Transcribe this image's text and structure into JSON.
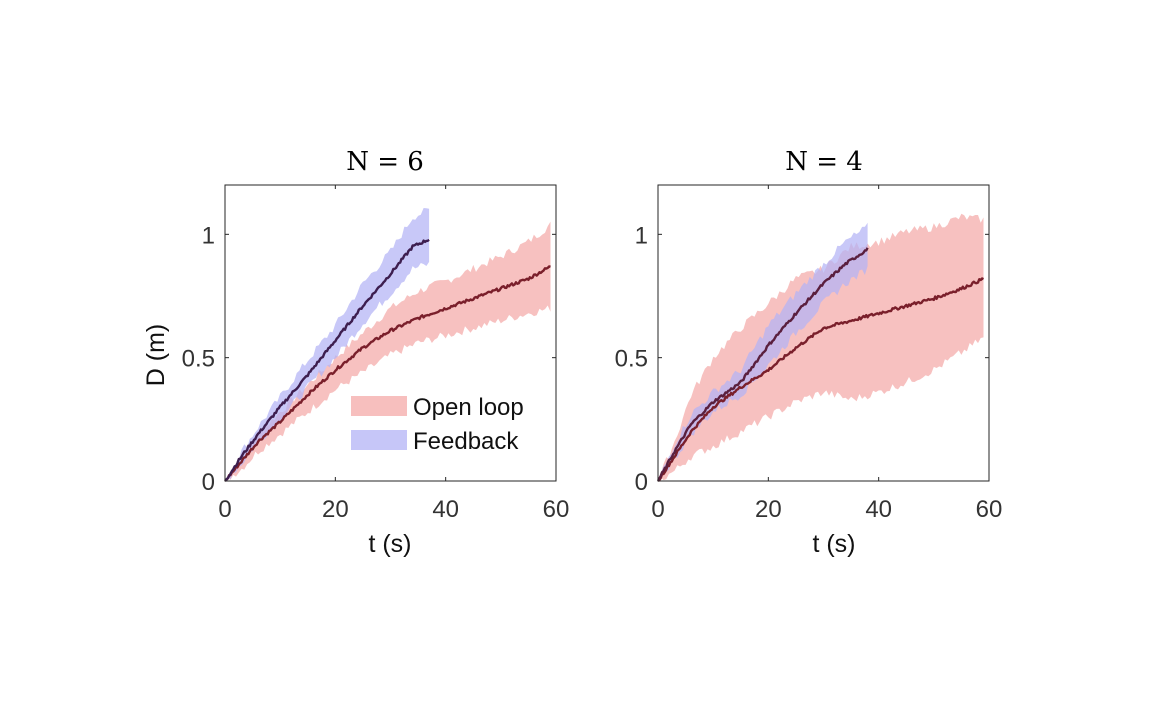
{
  "chart_data": [
    {
      "type": "line",
      "title": "N = 6",
      "xlabel": "t (s)",
      "ylabel": "D (m)",
      "xlim": [
        0,
        60
      ],
      "ylim": [
        0,
        1.2
      ],
      "xticks": [
        0,
        20,
        40,
        60
      ],
      "yticks": [
        0,
        0.5,
        1
      ],
      "xtick_labels": [
        "0",
        "20",
        "40",
        "60"
      ],
      "ytick_labels": [
        "0",
        "0.5",
        "1"
      ],
      "grid": false,
      "legend": {
        "placement": "bottom-right",
        "entries": [
          {
            "label": "Open loop",
            "color": "#f4a9a8"
          },
          {
            "label": "Feedback",
            "color": "#b3b3f5"
          }
        ]
      },
      "series": [
        {
          "name": "Open loop",
          "line_color": "#7a1f2b",
          "band_color": "#f4a9a8",
          "x": [
            0,
            3,
            6,
            10,
            15,
            20,
            25,
            30,
            35,
            40,
            45,
            50,
            55,
            59
          ],
          "mean": [
            0,
            0.08,
            0.16,
            0.24,
            0.35,
            0.45,
            0.54,
            0.61,
            0.66,
            0.7,
            0.74,
            0.78,
            0.82,
            0.87
          ],
          "upper": [
            0,
            0.1,
            0.19,
            0.28,
            0.39,
            0.5,
            0.6,
            0.7,
            0.77,
            0.81,
            0.86,
            0.91,
            0.97,
            1.04
          ],
          "lower": [
            0,
            0.05,
            0.12,
            0.19,
            0.28,
            0.37,
            0.44,
            0.51,
            0.56,
            0.59,
            0.62,
            0.65,
            0.68,
            0.7
          ]
        },
        {
          "name": "Feedback",
          "line_color": "#3d1e4f",
          "band_color": "#b3b3f5",
          "x": [
            0,
            3,
            6,
            10,
            15,
            20,
            25,
            30,
            34,
            37
          ],
          "mean": [
            0,
            0.1,
            0.19,
            0.3,
            0.43,
            0.57,
            0.71,
            0.84,
            0.95,
            0.98
          ],
          "upper": [
            0,
            0.12,
            0.22,
            0.34,
            0.49,
            0.63,
            0.8,
            0.93,
            1.07,
            1.1
          ],
          "lower": [
            0,
            0.07,
            0.16,
            0.25,
            0.38,
            0.5,
            0.64,
            0.76,
            0.86,
            0.88
          ]
        }
      ]
    },
    {
      "type": "line",
      "title": "N = 4",
      "xlabel": "t (s)",
      "ylabel": "",
      "xlim": [
        0,
        60
      ],
      "ylim": [
        0,
        1.2
      ],
      "xticks": [
        0,
        20,
        40,
        60
      ],
      "yticks": [
        0,
        0.5,
        1
      ],
      "xtick_labels": [
        "0",
        "20",
        "40",
        "60"
      ],
      "ytick_labels": [
        "0",
        "0.5",
        "1"
      ],
      "grid": false,
      "series": [
        {
          "name": "Open loop",
          "line_color": "#7a1f2b",
          "band_color": "#f4a9a8",
          "x": [
            0,
            3,
            6,
            10,
            15,
            20,
            25,
            30,
            35,
            40,
            45,
            50,
            55,
            59
          ],
          "mean": [
            0,
            0.1,
            0.2,
            0.3,
            0.38,
            0.45,
            0.54,
            0.62,
            0.65,
            0.68,
            0.71,
            0.74,
            0.78,
            0.82
          ],
          "upper": [
            0,
            0.16,
            0.35,
            0.5,
            0.62,
            0.72,
            0.82,
            0.86,
            0.95,
            0.97,
            1.01,
            1.03,
            1.07,
            1.06
          ],
          "lower": [
            0,
            0.04,
            0.1,
            0.14,
            0.2,
            0.26,
            0.32,
            0.36,
            0.33,
            0.36,
            0.4,
            0.45,
            0.52,
            0.58
          ]
        },
        {
          "name": "Feedback",
          "line_color": "#5a1f3e",
          "band_color": "#b3b3f5",
          "x": [
            0,
            3,
            6,
            10,
            15,
            20,
            25,
            30,
            34,
            38
          ],
          "mean": [
            0,
            0.12,
            0.23,
            0.32,
            0.4,
            0.55,
            0.68,
            0.8,
            0.88,
            0.94
          ],
          "upper": [
            0,
            0.15,
            0.27,
            0.36,
            0.45,
            0.63,
            0.76,
            0.88,
            0.97,
            1.03
          ],
          "lower": [
            0,
            0.09,
            0.19,
            0.28,
            0.35,
            0.47,
            0.6,
            0.72,
            0.8,
            0.86
          ]
        }
      ]
    }
  ]
}
